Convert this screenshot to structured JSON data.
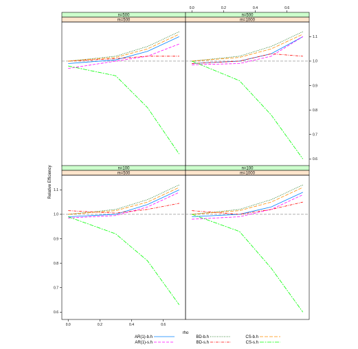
{
  "chart_data": {
    "type": "line",
    "xlabel": "rho",
    "ylabel": "Relative Efficiency",
    "xlim": [
      -0.04,
      0.74
    ],
    "ylim": [
      0.57,
      1.16
    ],
    "x_ticks": [
      0.0,
      0.2,
      0.4,
      0.6
    ],
    "x_tick_labels": [
      "0.0",
      "0.2",
      "0.4",
      "0.6"
    ],
    "y_ticks": [
      0.6,
      0.7,
      0.8,
      0.9,
      1.0,
      1.1
    ],
    "y_tick_labels": [
      "0.6",
      "0.7",
      "0.8",
      "0.9",
      "1.0",
      "1.1"
    ],
    "reference_line": 1.0,
    "colors": {
      "strip_n": "#ccffcc",
      "strip_m": "#ffe5cc",
      "ar1_bh": "#0080ff",
      "ar1_sh": "#ff00ff",
      "bd_bh": "#006400",
      "bd_sh": "#ff0000",
      "cs_bh": "#ff8c00",
      "cs_sh": "#00ff00",
      "refline": "#808080"
    },
    "legend": [
      {
        "key": "ar1_bh",
        "label": "AR(1)-b.h",
        "dash": "none"
      },
      {
        "key": "ar1_sh",
        "label": "AR(1)-s.h",
        "dash": "4,2"
      },
      {
        "key": "bd_bh",
        "label": "BD-b.h",
        "dash": "1,1.5"
      },
      {
        "key": "bd_sh",
        "label": "BD-s.h",
        "dash": "4,1.5,1,1.5"
      },
      {
        "key": "cs_bh",
        "label": "CS-b.h",
        "dash": "5,2"
      },
      {
        "key": "cs_sh",
        "label": "CS-s.h",
        "dash": "6,1.5,2,1.5"
      }
    ],
    "x": [
      0.0,
      0.3,
      0.5,
      0.7
    ],
    "panels": [
      {
        "n_label": "n=500",
        "m_label": "m=500",
        "series": {
          "ar1_bh": [
            0.99,
            1.005,
            1.04,
            1.1
          ],
          "ar1_sh": [
            0.97,
            1.0,
            1.02,
            1.07
          ],
          "bd_bh": [
            1.0,
            1.02,
            1.06,
            1.12
          ],
          "bd_sh": [
            1.0,
            1.01,
            1.02,
            1.02
          ],
          "cs_bh": [
            1.0,
            1.015,
            1.05,
            1.11
          ],
          "cs_sh": [
            0.98,
            0.94,
            0.81,
            0.62
          ]
        }
      },
      {
        "n_label": "n=500",
        "m_label": "m=1000",
        "series": {
          "ar1_bh": [
            0.99,
            1.0,
            1.03,
            1.1
          ],
          "ar1_sh": [
            0.985,
            0.99,
            1.02,
            1.1
          ],
          "bd_bh": [
            1.0,
            1.02,
            1.06,
            1.12
          ],
          "bd_sh": [
            0.99,
            1.0,
            1.03,
            1.02
          ],
          "cs_bh": [
            1.0,
            1.015,
            1.05,
            1.11
          ],
          "cs_sh": [
            1.0,
            0.92,
            0.78,
            0.6
          ]
        }
      },
      {
        "n_label": "n=100",
        "m_label": "m=500",
        "series": {
          "ar1_bh": [
            0.99,
            1.0,
            1.04,
            1.1
          ],
          "ar1_sh": [
            0.985,
            0.995,
            1.03,
            1.09
          ],
          "bd_bh": [
            1.0,
            1.02,
            1.06,
            1.12
          ],
          "bd_sh": [
            1.015,
            1.005,
            1.02,
            1.045
          ],
          "cs_bh": [
            1.0,
            1.015,
            1.05,
            1.11
          ],
          "cs_sh": [
            0.99,
            0.92,
            0.81,
            0.63
          ]
        }
      },
      {
        "n_label": "n=100",
        "m_label": "m=1000",
        "series": {
          "ar1_bh": [
            0.99,
            1.0,
            1.03,
            1.09
          ],
          "ar1_sh": [
            0.98,
            0.99,
            1.02,
            1.08
          ],
          "bd_bh": [
            1.0,
            1.02,
            1.06,
            1.12
          ],
          "bd_sh": [
            1.015,
            1.0,
            1.02,
            1.05
          ],
          "cs_bh": [
            1.0,
            1.015,
            1.05,
            1.11
          ],
          "cs_sh": [
            1.0,
            0.93,
            0.78,
            0.6
          ]
        }
      }
    ]
  }
}
